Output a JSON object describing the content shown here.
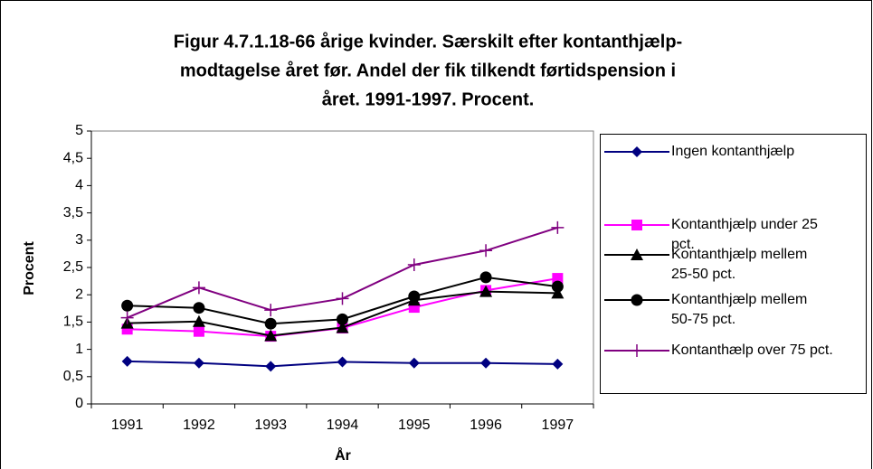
{
  "chart_data": {
    "type": "line",
    "title": [
      "Figur 4.7.1.18-66 årige kvinder. Særskilt efter kontanthjælp-",
      "modtagelse året før. Andel der fik tilkendt førtidspension i",
      "året. 1991-1997. Procent."
    ],
    "x_label": "År",
    "y_label": "Procent",
    "categories": [
      "1991",
      "1992",
      "1993",
      "1994",
      "1995",
      "1996",
      "1997"
    ],
    "series": [
      {
        "name": "Ingen kontanthjælp",
        "color": "#000080",
        "marker": "diamond",
        "values": [
          0.78,
          0.75,
          0.69,
          0.77,
          0.75,
          0.75,
          0.73
        ]
      },
      {
        "name": "Kontanthjælp under 25 pct.",
        "color": "#ff00ff",
        "marker": "square",
        "values": [
          1.37,
          1.33,
          1.24,
          1.39,
          1.77,
          2.08,
          2.3
        ]
      },
      {
        "name": "Kontanthjælp mellem 25-50 pct.",
        "color": "#000000",
        "marker": "triangle",
        "values": [
          1.48,
          1.51,
          1.25,
          1.4,
          1.9,
          2.06,
          2.03
        ]
      },
      {
        "name": "Kontanthjælp mellem 50-75 pct.",
        "color": "#000000",
        "marker": "circle",
        "values": [
          1.8,
          1.76,
          1.47,
          1.55,
          1.97,
          2.32,
          2.15
        ]
      },
      {
        "name": "Kontanthælp over 75 pct.",
        "color": "#800080",
        "marker": "plus",
        "values": [
          1.58,
          2.13,
          1.72,
          1.93,
          2.55,
          2.81,
          3.23
        ]
      }
    ],
    "ylim": [
      0,
      5
    ],
    "yticks": [
      0,
      {
        "value": 0.5,
        "label": "0,5"
      },
      1,
      {
        "value": 1.5,
        "label": "1,5"
      },
      2,
      {
        "value": 2.5,
        "label": "2,5"
      },
      3,
      {
        "value": 3.5,
        "label": "3,5"
      },
      4,
      {
        "value": 4.5,
        "label": "4,5"
      },
      5
    ],
    "grid": false,
    "legend": "right"
  }
}
